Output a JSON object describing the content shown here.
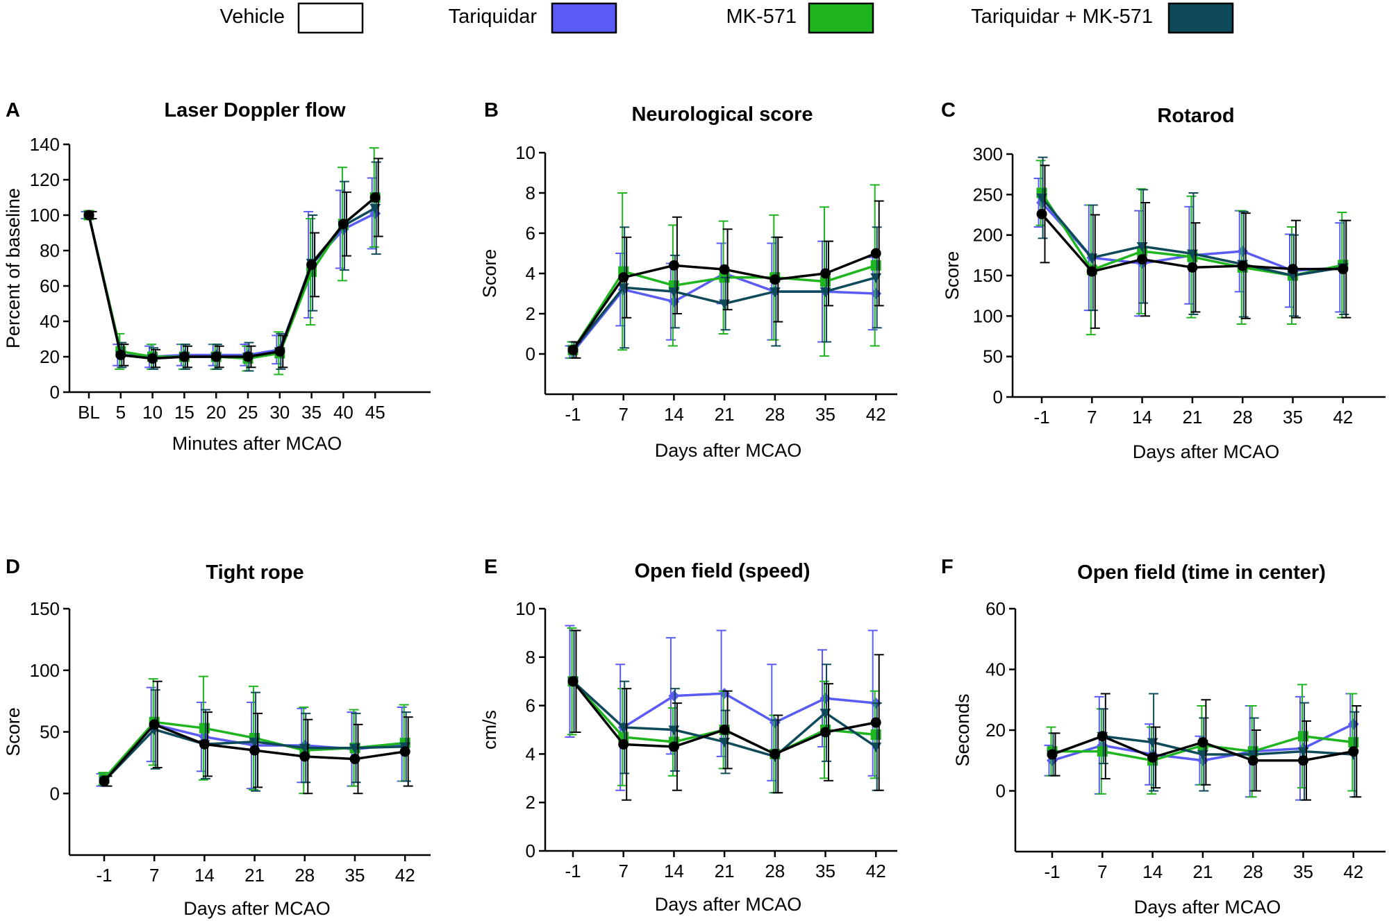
{
  "legend": [
    {
      "label": "Vehicle",
      "color": "#ffffff"
    },
    {
      "label": "Tariquidar",
      "color": "#5a5af5"
    },
    {
      "label": "MK-571",
      "color": "#1fb51f"
    },
    {
      "label": "Tariquidar + MK-571",
      "color": "#0f4a5a"
    }
  ],
  "chart_data": [
    {
      "panel": "A",
      "title": "Laser Doppler flow",
      "type": "line",
      "xlabel": "Minutes after MCAO",
      "ylabel": "Percent of baseline",
      "categories": [
        "BL",
        "5",
        "10",
        "15",
        "20",
        "25",
        "30",
        "35",
        "40",
        "45"
      ],
      "ylim": [
        0,
        140
      ],
      "yticks": [
        0,
        20,
        40,
        60,
        80,
        100,
        120,
        140
      ],
      "series": [
        {
          "name": "Tariquidar",
          "color": "#5a5af5",
          "marker": "diamond",
          "values": [
            100,
            21,
            20,
            21,
            21,
            21,
            24,
            72,
            92,
            101
          ],
          "errors": [
            2,
            6,
            6,
            6,
            6,
            6,
            8,
            30,
            22,
            20
          ]
        },
        {
          "name": "MK-571",
          "color": "#1fb51f",
          "marker": "square",
          "values": [
            100,
            23,
            20,
            20,
            20,
            19,
            22,
            68,
            95,
            110
          ],
          "errors": [
            2,
            10,
            7,
            7,
            7,
            7,
            12,
            30,
            32,
            28
          ]
        },
        {
          "name": "Tariquidar + MK-571",
          "color": "#0f4a5a",
          "marker": "triangle-down",
          "values": [
            100,
            21,
            19,
            20,
            20,
            20,
            23,
            73,
            94,
            104
          ],
          "errors": [
            2,
            7,
            6,
            7,
            7,
            8,
            10,
            27,
            25,
            26
          ]
        },
        {
          "name": "Vehicle",
          "color": "#000000",
          "marker": "circle",
          "values": [
            100,
            21,
            19,
            20,
            20,
            20,
            23,
            72,
            95,
            110
          ],
          "errors": [
            2,
            6,
            5,
            6,
            6,
            6,
            9,
            18,
            18,
            22
          ]
        }
      ]
    },
    {
      "panel": "B",
      "title": "Neurological score",
      "type": "line",
      "xlabel": "Days after MCAO",
      "ylabel": "Score",
      "categories": [
        "-1",
        "7",
        "14",
        "21",
        "28",
        "35",
        "42"
      ],
      "ylim": [
        -2,
        10
      ],
      "yticks": [
        0,
        2,
        4,
        6,
        8,
        10
      ],
      "series": [
        {
          "name": "Tariquidar",
          "color": "#5a5af5",
          "marker": "diamond",
          "values": [
            0.1,
            3.2,
            2.6,
            4.0,
            3.1,
            3.1,
            3.0
          ],
          "errors": [
            0.3,
            1.8,
            1.9,
            1.5,
            2.4,
            2.5,
            1.8
          ]
        },
        {
          "name": "MK-571",
          "color": "#1fb51f",
          "marker": "square",
          "values": [
            0.2,
            4.1,
            3.4,
            3.8,
            3.8,
            3.6,
            4.4
          ],
          "errors": [
            0.4,
            3.9,
            3.0,
            2.8,
            3.1,
            3.7,
            4.0
          ]
        },
        {
          "name": "Tariquidar + MK-571",
          "color": "#0f4a5a",
          "marker": "triangle-down",
          "values": [
            0.2,
            3.3,
            3.1,
            2.5,
            3.1,
            3.1,
            3.8
          ],
          "errors": [
            0.4,
            3.0,
            1.8,
            1.3,
            2.7,
            2.5,
            2.5
          ]
        },
        {
          "name": "Vehicle",
          "color": "#000000",
          "marker": "circle",
          "values": [
            0.2,
            3.8,
            4.4,
            4.2,
            3.7,
            4.0,
            5.0
          ],
          "errors": [
            0.4,
            2.0,
            2.4,
            2.0,
            2.1,
            1.6,
            2.6
          ]
        }
      ]
    },
    {
      "panel": "C",
      "title": "Rotarod",
      "type": "line",
      "xlabel": "Days after MCAO",
      "ylabel": "Score",
      "categories": [
        "-1",
        "7",
        "14",
        "21",
        "28",
        "35",
        "42"
      ],
      "ylim": [
        0,
        300
      ],
      "yticks": [
        0,
        50,
        100,
        150,
        200,
        250,
        300
      ],
      "series": [
        {
          "name": "Tariquidar",
          "color": "#5a5af5",
          "marker": "diamond",
          "values": [
            240,
            172,
            165,
            175,
            180,
            156,
            160
          ],
          "errors": [
            30,
            65,
            65,
            60,
            50,
            45,
            55
          ]
        },
        {
          "name": "MK-571",
          "color": "#1fb51f",
          "marker": "square",
          "values": [
            252,
            157,
            180,
            173,
            160,
            150,
            163
          ],
          "errors": [
            40,
            80,
            77,
            75,
            70,
            60,
            65
          ]
        },
        {
          "name": "Tariquidar + MK-571",
          "color": "#0f4a5a",
          "marker": "triangle-down",
          "values": [
            246,
            172,
            186,
            177,
            164,
            150,
            160
          ],
          "errors": [
            50,
            65,
            70,
            75,
            65,
            50,
            58
          ]
        },
        {
          "name": "Vehicle",
          "color": "#000000",
          "marker": "circle",
          "values": [
            226,
            155,
            170,
            160,
            162,
            158,
            158
          ],
          "errors": [
            60,
            70,
            70,
            55,
            65,
            60,
            60
          ]
        }
      ]
    },
    {
      "panel": "D",
      "title": "Tight rope",
      "type": "line",
      "xlabel": "Days after MCAO",
      "ylabel": "Score",
      "categories": [
        "-1",
        "7",
        "14",
        "21",
        "28",
        "35",
        "42"
      ],
      "ylim": [
        -50,
        150
      ],
      "yticks": [
        0,
        50,
        100,
        150
      ],
      "series": [
        {
          "name": "Tariquidar",
          "color": "#5a5af5",
          "marker": "diamond",
          "values": [
            11,
            56,
            46,
            39,
            39,
            36,
            40
          ],
          "errors": [
            5,
            30,
            28,
            35,
            30,
            30,
            30
          ]
        },
        {
          "name": "MK-571",
          "color": "#1fb51f",
          "marker": "square",
          "values": [
            12,
            58,
            53,
            45,
            35,
            37,
            41
          ],
          "errors": [
            5,
            35,
            42,
            42,
            35,
            31,
            31
          ]
        },
        {
          "name": "Tariquidar + MK-571",
          "color": "#0f4a5a",
          "marker": "triangle-down",
          "values": [
            10,
            52,
            40,
            42,
            37,
            37,
            38
          ],
          "errors": [
            4,
            32,
            28,
            40,
            28,
            28,
            28
          ]
        },
        {
          "name": "Vehicle",
          "color": "#000000",
          "marker": "circle",
          "values": [
            10,
            56,
            40,
            35,
            30,
            28,
            34
          ],
          "errors": [
            4,
            35,
            26,
            30,
            30,
            28,
            28
          ]
        }
      ]
    },
    {
      "panel": "E",
      "title": "Open field (speed)",
      "type": "line",
      "xlabel": "Days after MCAO",
      "ylabel": "cm/s",
      "categories": [
        "-1",
        "7",
        "14",
        "21",
        "28",
        "35",
        "42"
      ],
      "ylim": [
        0,
        10
      ],
      "yticks": [
        0,
        2,
        4,
        6,
        8,
        10
      ],
      "series": [
        {
          "name": "Tariquidar",
          "color": "#5a5af5",
          "marker": "diamond",
          "values": [
            7.0,
            5.1,
            6.4,
            6.5,
            5.3,
            6.3,
            6.1
          ],
          "errors": [
            2.3,
            2.6,
            2.4,
            2.6,
            2.4,
            2.0,
            3.0
          ]
        },
        {
          "name": "MK-571",
          "color": "#1fb51f",
          "marker": "square",
          "values": [
            7.0,
            4.7,
            4.5,
            5.0,
            4.0,
            5.0,
            4.8
          ],
          "errors": [
            2.2,
            2.0,
            1.4,
            1.6,
            1.6,
            2.0,
            1.8
          ]
        },
        {
          "name": "Tariquidar + MK-571",
          "color": "#0f4a5a",
          "marker": "triangle-down",
          "values": [
            7.0,
            5.1,
            5.0,
            4.5,
            3.9,
            5.7,
            4.3
          ],
          "errors": [
            2.1,
            1.9,
            1.7,
            1.3,
            1.5,
            2.0,
            1.8
          ]
        },
        {
          "name": "Vehicle",
          "color": "#000000",
          "marker": "circle",
          "values": [
            7.0,
            4.4,
            4.3,
            5.0,
            4.0,
            4.9,
            5.3
          ],
          "errors": [
            2.1,
            2.3,
            1.8,
            1.6,
            1.6,
            2.0,
            2.8
          ]
        }
      ]
    },
    {
      "panel": "F",
      "title": "Open field (time in center)",
      "type": "line",
      "xlabel": "Days after MCAO",
      "ylabel": "Seconds",
      "categories": [
        "-1",
        "7",
        "14",
        "21",
        "28",
        "35",
        "42"
      ],
      "ylim": [
        -20,
        60
      ],
      "yticks": [
        0,
        20,
        40,
        60
      ],
      "series": [
        {
          "name": "Tariquidar",
          "color": "#5a5af5",
          "marker": "diamond",
          "values": [
            10,
            15,
            12,
            10,
            13,
            14,
            22
          ],
          "errors": [
            5,
            16,
            10,
            8,
            15,
            17,
            10
          ]
        },
        {
          "name": "MK-571",
          "color": "#1fb51f",
          "marker": "square",
          "values": [
            13,
            13,
            10,
            15,
            13,
            18,
            16
          ],
          "errors": [
            8,
            14,
            11,
            13,
            15,
            17,
            16
          ]
        },
        {
          "name": "Tariquidar + MK-571",
          "color": "#0f4a5a",
          "marker": "triangle-down",
          "values": [
            12,
            18,
            16,
            12,
            12,
            13,
            12
          ],
          "errors": [
            7,
            9,
            16,
            12,
            12,
            16,
            14
          ]
        },
        {
          "name": "Vehicle",
          "color": "#000000",
          "marker": "circle",
          "values": [
            12,
            18,
            11,
            16,
            10,
            10,
            13
          ],
          "errors": [
            7,
            14,
            10,
            14,
            10,
            13,
            15
          ]
        }
      ]
    }
  ]
}
